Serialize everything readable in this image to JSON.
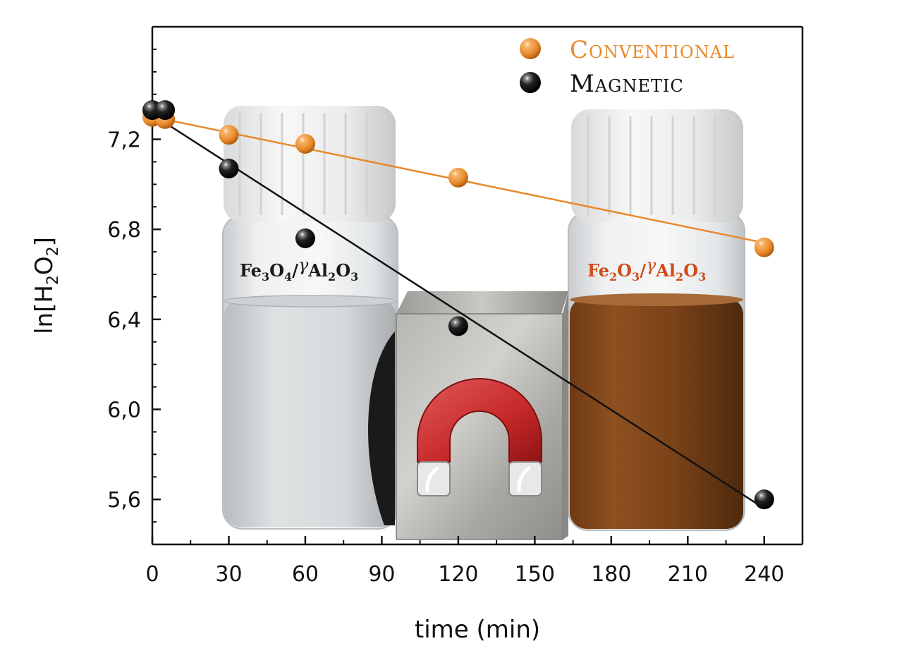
{
  "chart_data": {
    "type": "scatter",
    "xlabel": "time (min)",
    "ylabel_parts": {
      "pre": "ln[H",
      "sub1": "2",
      "mid": "O",
      "sub2": "2",
      "post": "]"
    },
    "xlim": [
      0,
      255
    ],
    "ylim": [
      5.4,
      7.7
    ],
    "x_ticks": [
      0,
      30,
      60,
      90,
      120,
      150,
      180,
      210,
      240
    ],
    "x_tick_labels": [
      "0",
      "30",
      "60",
      "90",
      "120",
      "150",
      "180",
      "210",
      "240"
    ],
    "y_ticks": [
      5.6,
      6.0,
      6.4,
      6.8,
      7.2
    ],
    "y_tick_labels": [
      "5,6",
      "6,0",
      "6,4",
      "6,8",
      "7,2"
    ],
    "legend_position": "top-right",
    "series": [
      {
        "name": "Conventional",
        "color": "#e8892a",
        "x": [
          0,
          5,
          30,
          60,
          120,
          240
        ],
        "y": [
          7.3,
          7.29,
          7.22,
          7.18,
          7.03,
          6.72
        ],
        "fit": {
          "x": [
            0,
            240
          ],
          "y": [
            7.3,
            6.74
          ]
        }
      },
      {
        "name": "Magnetic",
        "color": "#111111",
        "x": [
          0,
          5,
          30,
          60,
          120,
          240
        ],
        "y": [
          7.33,
          7.33,
          7.07,
          6.76,
          6.37,
          5.6
        ],
        "fit": {
          "x": [
            0,
            240
          ],
          "y": [
            7.31,
            5.56
          ]
        }
      }
    ]
  },
  "vials": {
    "left_label": {
      "a": "Fe",
      "a_sub": "3",
      "b": "O",
      "b_sub": "4",
      "c": "/",
      "gamma": "γ",
      "d": "Al",
      "d_sub": "2",
      "e": "O",
      "e_sub": "3"
    },
    "right_label": {
      "a": "Fe",
      "a_sub": "2",
      "b": "O",
      "b_sub": "3",
      "c": "/",
      "gamma": "γ",
      "d": "Al",
      "d_sub": "2",
      "e": "O",
      "e_sub": "3"
    },
    "left_label_color": "#1a1a1a",
    "right_label_color": "#d24a1a"
  },
  "icons": {
    "magnet": "horseshoe-magnet-icon"
  }
}
